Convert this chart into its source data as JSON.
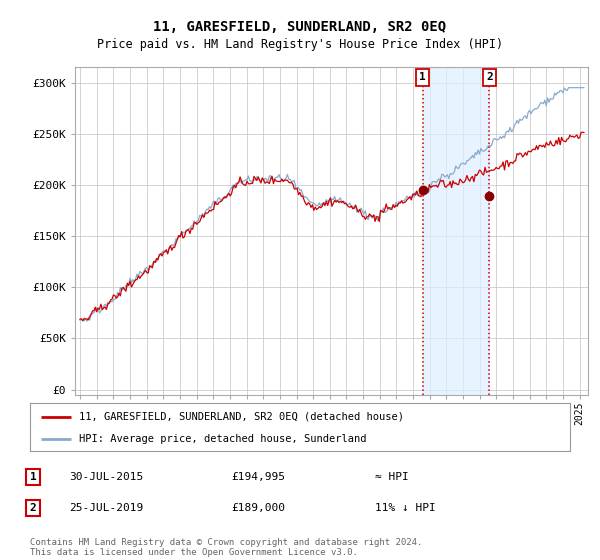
{
  "title": "11, GARESFIELD, SUNDERLAND, SR2 0EQ",
  "subtitle": "Price paid vs. HM Land Registry's House Price Index (HPI)",
  "ylabel_ticks": [
    "£0",
    "£50K",
    "£100K",
    "£150K",
    "£200K",
    "£250K",
    "£300K"
  ],
  "ytick_values": [
    0,
    50000,
    100000,
    150000,
    200000,
    250000,
    300000
  ],
  "ylim": [
    -5000,
    315000
  ],
  "legend_line1": "11, GARESFIELD, SUNDERLAND, SR2 0EQ (detached house)",
  "legend_line2": "HPI: Average price, detached house, Sunderland",
  "annotation1_label": "1",
  "annotation1_date": "30-JUL-2015",
  "annotation1_price": "£194,995",
  "annotation1_note": "≈ HPI",
  "annotation2_label": "2",
  "annotation2_date": "25-JUL-2019",
  "annotation2_price": "£189,000",
  "annotation2_note": "11% ↓ HPI",
  "footer": "Contains HM Land Registry data © Crown copyright and database right 2024.\nThis data is licensed under the Open Government Licence v3.0.",
  "sale1_date_num": 2015.58,
  "sale1_price": 194995,
  "sale2_date_num": 2019.58,
  "sale2_price": 189000,
  "red_line_color": "#cc0000",
  "blue_line_color": "#88aacc",
  "shade_color": "#ddeeff",
  "annotation_vline_color": "#cc0000",
  "annotation_marker_color": "#880000",
  "background_color": "#ffffff",
  "plot_bg_color": "#ffffff",
  "grid_color": "#cccccc"
}
